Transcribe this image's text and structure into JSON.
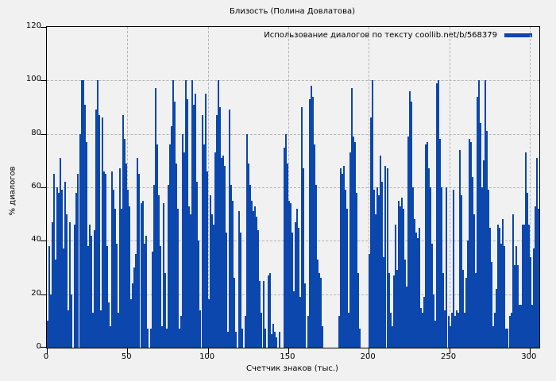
{
  "title": "Близость (Полина Довлатова)",
  "legend": {
    "label": "Использование диалогов по тексту coollib.net/b/568379",
    "swatch_color": "#0b47ad"
  },
  "colors": {
    "bar": "#0b47ad",
    "background": "#f1f1f1",
    "grid": "#b4b4b4",
    "axis": "#000000"
  },
  "chart_data": {
    "type": "bar",
    "title": "Близость (Полина Довлатова)",
    "xlabel": "Счетчик знаков (тыс.)",
    "ylabel": "% диалогов",
    "xlim": [
      0,
      306
    ],
    "ylim": [
      0,
      120
    ],
    "x_ticks": [
      0,
      50,
      100,
      150,
      200,
      250,
      300
    ],
    "y_ticks": [
      0,
      20,
      40,
      60,
      80,
      100,
      120
    ],
    "grid": true,
    "legend_position": "top-right-inside",
    "series": [
      {
        "name": "Использование диалогов по тексту coollib.net/b/568379",
        "color": "#0b47ad",
        "x_start": 0,
        "x_step": 1,
        "values": [
          10,
          38,
          20,
          47,
          65,
          33,
          60,
          58,
          71,
          59,
          37,
          62,
          50,
          14,
          47,
          20,
          0,
          46,
          58,
          65,
          80,
          100,
          100,
          91,
          77,
          38,
          46,
          42,
          13,
          44,
          89,
          100,
          87,
          14,
          86,
          66,
          65,
          38,
          17,
          8,
          66,
          59,
          52,
          39,
          13,
          67,
          52,
          87,
          78,
          69,
          59,
          53,
          18,
          24,
          30,
          35,
          71,
          65,
          54,
          55,
          39,
          42,
          7,
          0,
          7,
          36,
          61,
          97,
          76,
          57,
          38,
          8,
          54,
          28,
          7,
          61,
          76,
          83,
          100,
          92,
          69,
          52,
          7,
          12,
          80,
          73,
          100,
          93,
          53,
          50,
          100,
          91,
          95,
          62,
          40,
          14,
          87,
          76,
          95,
          66,
          18,
          57,
          50,
          46,
          73,
          87,
          100,
          90,
          71,
          72,
          68,
          43,
          6,
          89,
          61,
          55,
          26,
          6,
          0,
          51,
          43,
          7,
          0,
          12,
          80,
          69,
          61,
          55,
          51,
          53,
          49,
          44,
          25,
          13,
          25,
          7,
          0,
          27,
          28,
          5,
          9,
          6,
          4,
          0,
          6,
          0,
          0,
          75,
          80,
          69,
          55,
          54,
          43,
          21,
          47,
          52,
          45,
          19,
          90,
          67,
          24,
          0,
          12,
          93,
          98,
          94,
          76,
          61,
          33,
          28,
          26,
          8,
          0,
          0,
          0,
          0,
          0,
          0,
          0,
          0,
          0,
          12,
          67,
          65,
          68,
          59,
          52,
          13,
          73,
          97,
          79,
          77,
          58,
          28,
          7,
          0,
          0,
          0,
          0,
          0,
          35,
          86,
          100,
          59,
          50,
          60,
          57,
          72,
          62,
          34,
          68,
          67,
          28,
          13,
          8,
          27,
          46,
          29,
          55,
          53,
          56,
          52,
          33,
          23,
          79,
          96,
          92,
          60,
          48,
          43,
          41,
          45,
          15,
          13,
          19,
          76,
          77,
          67,
          60,
          39,
          20,
          10,
          99,
          100,
          78,
          60,
          28,
          14,
          60,
          12,
          8,
          13,
          59,
          12,
          14,
          13,
          74,
          57,
          29,
          13,
          26,
          40,
          78,
          77,
          64,
          50,
          28,
          94,
          100,
          84,
          60,
          70,
          100,
          81,
          59,
          45,
          32,
          8,
          13,
          22,
          46,
          45,
          39,
          48,
          38,
          7,
          7,
          12,
          13,
          50,
          31,
          38,
          31,
          16,
          16,
          46,
          46,
          73,
          58,
          46,
          34,
          16,
          37,
          53,
          71,
          52
        ]
      }
    ]
  }
}
